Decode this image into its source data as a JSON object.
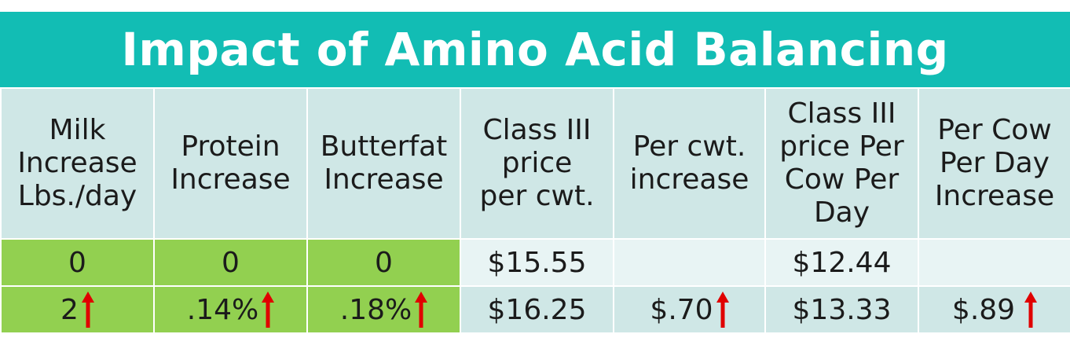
{
  "title": "Impact of Amino Acid Balancing",
  "headers": [
    [
      "Milk",
      "Increase",
      "Lbs./day"
    ],
    [
      "Protein",
      "Increase"
    ],
    [
      "Butterfat",
      "Increase"
    ],
    [
      "Class III",
      "price",
      "per cwt."
    ],
    [
      "Per cwt.",
      "increase"
    ],
    [
      "Class III",
      "price Per",
      "Cow Per",
      "Day"
    ],
    [
      "Per Cow",
      "Per Day",
      "Increase"
    ]
  ],
  "rows": [
    [
      "0",
      "0",
      "0",
      "$15.55",
      "",
      "$12.44",
      ""
    ],
    [
      "2",
      ".14%",
      ".18%",
      "$16.25",
      "$.70",
      "$13.33",
      "$.89"
    ]
  ],
  "arrow_icon": "up-arrow-icon",
  "colors": {
    "title_bg": "#12bdb4",
    "header_bg": "#cfe7e6",
    "green": "#92d050",
    "arrow": "#e00000"
  }
}
